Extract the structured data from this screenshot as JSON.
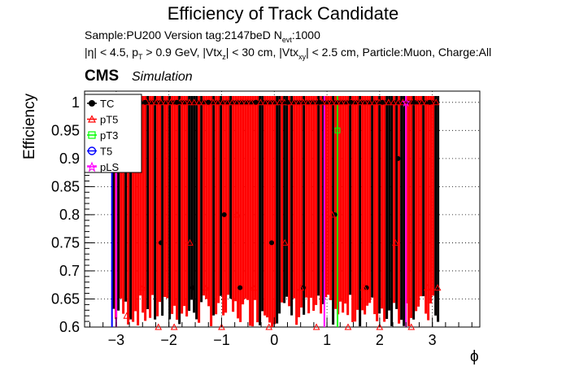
{
  "chart_data": {
    "type": "scatter",
    "title": "Efficiency of Track Candidate",
    "subtitle_line1": "Sample:PU200   Version tag:2147beD  N",
    "subtitle_line1_sub": "evt",
    "subtitle_line1_end": ":1000",
    "subtitle_line2": "|η| < 4.5, p",
    "subtitle_line2_sub1": "T",
    "subtitle_line2_mid": " > 0.9 GeV, |Vtx",
    "subtitle_line2_sub2": "z",
    "subtitle_line2_mid2": "| < 30 cm, |Vtx",
    "subtitle_line2_sub3": "xy",
    "subtitle_line2_end": "| < 2.5 cm, Particle:Muon, Charge:All",
    "cms_label": "CMS",
    "simulation_label": "Simulation",
    "xlabel": "ϕ",
    "ylabel": "Efficiency",
    "xlim": [
      -3.6,
      3.9
    ],
    "ylim": [
      0.6,
      1.02
    ],
    "yticks": [
      "0.6",
      "0.65",
      "0.7",
      "0.75",
      "0.8",
      "0.85",
      "0.9",
      "0.95",
      "1"
    ],
    "yticks_values": [
      0.6,
      0.65,
      0.7,
      0.75,
      0.8,
      0.85,
      0.9,
      0.95,
      1.0
    ],
    "xticks": [
      "−3",
      "−2",
      "−1",
      "0",
      "1",
      "2",
      "3"
    ],
    "xticks_values": [
      -3,
      -2,
      -1,
      0,
      1,
      2,
      3
    ],
    "grid": true,
    "legend_position": "top-left",
    "series": [
      {
        "name": "TC",
        "color": "#000000",
        "marker": "filled-circle",
        "x": [
          -3.05,
          -2.75,
          -2.45,
          -2.15,
          -1.85,
          -1.55,
          -1.25,
          -0.95,
          -0.65,
          -0.35,
          -0.05,
          0.25,
          0.55,
          0.85,
          1.15,
          1.45,
          1.75,
          2.05,
          2.35,
          2.65,
          2.95
        ],
        "y": [
          1.0,
          0.9,
          1.0,
          0.75,
          1.0,
          0.67,
          1.0,
          0.8,
          0.67,
          1.0,
          0.75,
          1.0,
          0.67,
          1.0,
          0.8,
          1.0,
          0.67,
          1.0,
          0.9,
          1.0,
          1.0
        ]
      },
      {
        "name": "pT5",
        "color": "#ff0000",
        "marker": "open-triangle",
        "x": [
          -3.1,
          -2.8,
          -2.5,
          -2.2,
          -1.9,
          -1.6,
          -1.3,
          -1.0,
          -0.7,
          -0.4,
          -0.1,
          0.2,
          0.5,
          0.8,
          1.1,
          1.4,
          1.7,
          2.0,
          2.3,
          2.6,
          2.9,
          3.1
        ],
        "y": [
          1.0,
          0.62,
          0.67,
          0.6,
          0.6,
          0.75,
          0.67,
          0.6,
          0.8,
          0.67,
          0.6,
          0.75,
          0.67,
          0.6,
          0.8,
          0.6,
          0.67,
          0.6,
          0.75,
          0.6,
          0.67,
          0.67
        ]
      },
      {
        "name": "pT3",
        "color": "#00ff00",
        "marker": "open-square",
        "x": [
          1.2
        ],
        "y": [
          0.95
        ]
      },
      {
        "name": "T5",
        "color": "#0000ff",
        "marker": "open-circle",
        "x": [
          -3.1
        ],
        "y": [
          1.0
        ]
      },
      {
        "name": "pLS",
        "color": "#ff00ff",
        "marker": "open-star",
        "x": [
          -3.0,
          2.5
        ],
        "y": [
          1.0,
          1.0
        ]
      }
    ]
  }
}
